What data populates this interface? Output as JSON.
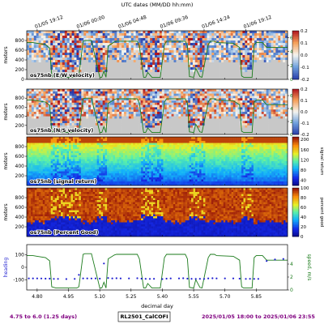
{
  "top_axis": {
    "label": "UTC dates (MM/DD hh:mm)",
    "ticks": [
      "01/05 19:12",
      "01/06 00:00",
      "01/06 04:48",
      "01/06 09:36",
      "01/06 14:24",
      "01/06 19:12"
    ],
    "tick_days": [
      4.8,
      5.0,
      5.2,
      5.4,
      5.6,
      5.8
    ]
  },
  "bottom_axis": {
    "label": "decimal day",
    "ticks": [
      "4.80",
      "4.95",
      "5.10",
      "5.25",
      "5.40",
      "5.55",
      "5.70",
      "5.85"
    ],
    "tick_days": [
      4.8,
      4.95,
      5.1,
      5.25,
      5.4,
      5.55,
      5.7,
      5.85
    ]
  },
  "footer": {
    "left": "4.75 to 6.0 (1.25 days)",
    "center": "RL2501_CalCOFI",
    "right": "2025/01/05 18:00 to 2025/01/06 23:55",
    "left_color": "#800080",
    "right_color": "#800080"
  },
  "colors": {
    "speed_line": "#1a7a1a",
    "heading_dots": "#1f1fd0",
    "nodata": "#c8c8c8"
  },
  "chart_data": [
    {
      "type": "heatmap",
      "title": "os75nb (E/W velocity)",
      "ylabel": "meters",
      "yticks": [
        "0",
        "200",
        "400",
        "600",
        "800"
      ],
      "ylim": [
        1000,
        0
      ],
      "xlim": [
        4.75,
        6.0
      ],
      "colorbar": {
        "ticks": [
          "0.2",
          "0.1",
          "0.0",
          "-0.1",
          "-0.2"
        ],
        "range": [
          -0.2,
          0.2
        ],
        "label": ""
      },
      "right_axis": {
        "ticks": [
          "6",
          "4",
          "2",
          "0"
        ],
        "range": [
          0,
          7
        ]
      },
      "overlay": "speed"
    },
    {
      "type": "heatmap",
      "title": "os75nb (N/S velocity)",
      "ylabel": "meters",
      "yticks": [
        "200",
        "400",
        "600",
        "800"
      ],
      "ylim": [
        1000,
        0
      ],
      "xlim": [
        4.75,
        6.0
      ],
      "colorbar": {
        "ticks": [
          "0.2",
          "0.1",
          "0.0",
          "-0.1",
          "-0.2"
        ],
        "range": [
          -0.2,
          0.2
        ],
        "label": ""
      },
      "right_axis": {
        "ticks": [
          "6",
          "4",
          "2",
          "0"
        ],
        "range": [
          0,
          7
        ]
      },
      "overlay": "speed"
    },
    {
      "type": "heatmap",
      "title": "os75nb (signal return)",
      "ylabel": "meters",
      "yticks": [
        "200",
        "400",
        "600",
        "800"
      ],
      "ylim": [
        1000,
        0
      ],
      "xlim": [
        4.75,
        6.0
      ],
      "colorbar": {
        "ticks": [
          "200",
          "160",
          "120",
          "80",
          "40"
        ],
        "range": [
          20,
          210
        ],
        "label": "signal return"
      },
      "overlay": "none"
    },
    {
      "type": "heatmap",
      "title": "os75nb (Percent Good)",
      "ylabel": "meters",
      "yticks": [
        "200",
        "400",
        "600",
        "800"
      ],
      "ylim": [
        1000,
        0
      ],
      "xlim": [
        4.75,
        6.0
      ],
      "colorbar": {
        "ticks": [
          "100",
          "80",
          "60",
          "40",
          "20",
          "0"
        ],
        "range": [
          0,
          100
        ],
        "label": "percent good"
      },
      "overlay": "none"
    },
    {
      "type": "line",
      "ylabel": "heading",
      "right_label": "speed, m/s",
      "yticks": [
        "100",
        "0",
        "-100"
      ],
      "ylim": [
        -180,
        180
      ],
      "right_ticks": [
        "4",
        "2",
        "0"
      ],
      "right_range": [
        0,
        7
      ],
      "xlim": [
        4.75,
        6.0
      ],
      "series": [
        {
          "kind": "speed",
          "x": [
            4.75,
            4.77,
            4.78,
            4.8,
            4.84,
            4.86,
            4.87,
            4.89,
            4.99,
            5.0,
            5.02,
            5.03,
            5.06,
            5.1,
            5.11,
            5.12,
            5.13,
            5.14,
            5.17,
            5.18,
            5.28,
            5.29,
            5.31,
            5.32,
            5.33,
            5.35,
            5.39,
            5.41,
            5.42,
            5.51,
            5.52,
            5.53,
            5.55,
            5.56,
            5.58,
            5.59,
            5.62,
            5.63,
            5.65,
            5.66,
            5.74,
            5.77,
            5.78,
            5.79,
            5.81,
            5.83,
            5.84,
            5.85,
            5.88,
            5.9,
            6.0
          ],
          "values": [
            5.3,
            5.3,
            5.3,
            5.2,
            5.0,
            4.5,
            0.5,
            0.3,
            0.3,
            0.5,
            5.5,
            5.6,
            5.6,
            0.3,
            0.3,
            1.2,
            0.3,
            4.8,
            5.4,
            5.5,
            5.5,
            4.8,
            0.3,
            0.3,
            1.0,
            0.3,
            0.3,
            5.0,
            5.5,
            5.5,
            4.8,
            0.4,
            0.3,
            1.6,
            0.4,
            0.3,
            5.0,
            5.5,
            5.5,
            5.3,
            5.2,
            4.6,
            0.5,
            0.3,
            0.3,
            0.3,
            5.0,
            5.3,
            5.3,
            4.6,
            4.6
          ]
        },
        {
          "kind": "heading",
          "x": [
            4.76,
            4.78,
            4.8,
            4.82,
            4.84,
            4.86,
            4.88,
            4.9,
            4.94,
            4.98,
            5.0,
            5.02,
            5.04,
            5.06,
            5.08,
            5.1,
            5.12,
            5.14,
            5.16,
            5.18,
            5.2,
            5.24,
            5.28,
            5.3,
            5.32,
            5.34,
            5.36,
            5.4,
            5.42,
            5.44,
            5.48,
            5.5,
            5.52,
            5.54,
            5.56,
            5.58,
            5.6,
            5.62,
            5.64,
            5.66,
            5.7,
            5.74,
            5.77,
            5.8,
            5.82,
            5.84,
            5.86,
            5.9,
            5.94,
            5.98
          ],
          "values": [
            -88,
            -88,
            -88,
            -89,
            -90,
            -90,
            -92,
            -92,
            -93,
            -92,
            -60,
            -88,
            -88,
            -89,
            -88,
            -90,
            30,
            -85,
            -88,
            -87,
            -88,
            -88,
            -87,
            -90,
            -91,
            -92,
            -91,
            -93,
            -90,
            -88,
            -88,
            -87,
            -90,
            -91,
            -92,
            -91,
            -92,
            -88,
            -87,
            -88,
            -88,
            -88,
            -90,
            -92,
            -91,
            -92,
            -92,
            50,
            62,
            66
          ]
        }
      ]
    }
  ]
}
